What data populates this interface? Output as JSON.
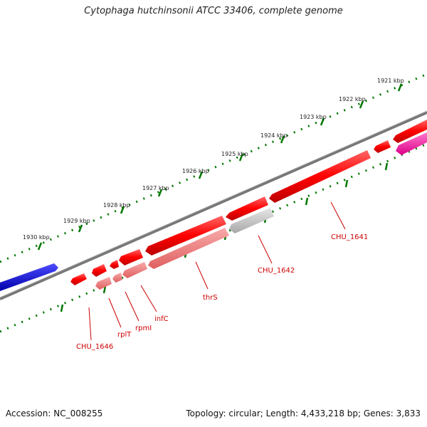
{
  "title": "Cytophaga hutchinsonii ATCC 33406, complete genome",
  "footer": {
    "accession": "Accession: NC_008255",
    "topology": "Topology: circular; Length: 4,433,218 bp; Genes: 3,833"
  },
  "kbp_labels": [
    "1921 kbp",
    "1922 kbp",
    "1923 kbp",
    "1924 kbp",
    "1925 kbp",
    "1926 kbp",
    "1927 kbp",
    "1928 kbp",
    "1929 kbp",
    "1930 kbp"
  ],
  "gene_labels": [
    "CHU_1641",
    "CHU_1642",
    "thrS",
    "infC",
    "rpmI",
    "rplT",
    "CHU_1646"
  ],
  "colors": {
    "forward_gene": "#ff0000",
    "reverse_gene": "#f08080",
    "reverse_gene_gray": "#c8c8c8",
    "blue_feature": "#0000ee",
    "pink_feature": "#ff3399",
    "backbone": "#808080",
    "tick": "#007700",
    "label": "#cc0000"
  }
}
